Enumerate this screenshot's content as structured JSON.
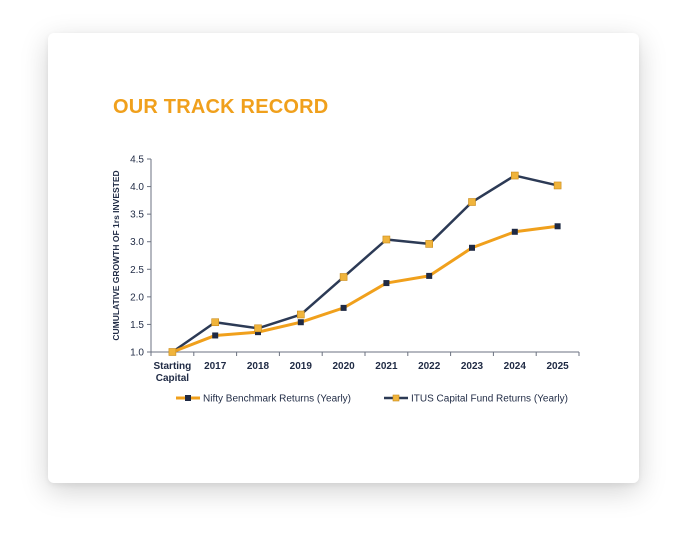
{
  "page": {
    "title": "OUR TRACK RECORD"
  },
  "colors": {
    "title": "#f0a01c",
    "nifty_line": "#f0a01c",
    "nifty_marker": "#1f2a44",
    "itus_line": "#2c3a55",
    "itus_marker": "#f0b43c",
    "axis": "#6b7280"
  },
  "chart_data": {
    "type": "line",
    "title": "",
    "xlabel": "",
    "ylabel": "CUMULATIVE GROWTH OF 1rs INVESTED",
    "ylim": [
      1.0,
      4.5
    ],
    "yticks": [
      "1.0",
      "1.5",
      "2.0",
      "2.5",
      "3.0",
      "3.5",
      "4.0",
      "4.5"
    ],
    "categories": [
      [
        "Starting",
        "Capital"
      ],
      [
        "2017"
      ],
      [
        "2018"
      ],
      [
        "2019"
      ],
      [
        "2020"
      ],
      [
        "2021"
      ],
      [
        "2022"
      ],
      [
        "2023"
      ],
      [
        "2024"
      ],
      [
        "2025"
      ]
    ],
    "series": [
      {
        "name": "Nifty Benchmark Returns (Yearly)",
        "values": [
          1.0,
          1.3,
          1.36,
          1.54,
          1.8,
          2.25,
          2.38,
          2.89,
          3.18,
          3.28
        ]
      },
      {
        "name": "ITUS Capital Fund Returns (Yearly)",
        "values": [
          1.0,
          1.54,
          1.43,
          1.68,
          2.36,
          3.04,
          2.96,
          3.72,
          4.2,
          4.02
        ]
      }
    ],
    "legend": "bottom"
  }
}
